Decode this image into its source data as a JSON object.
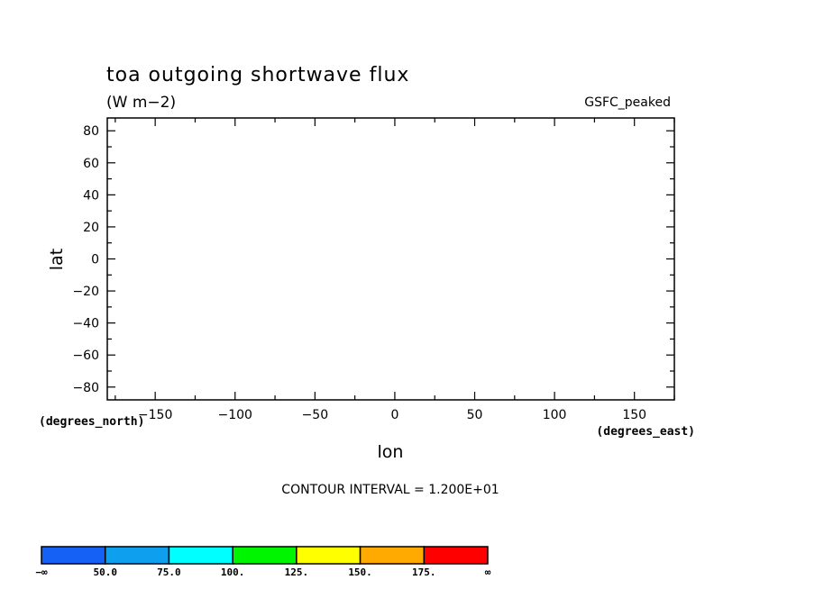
{
  "chart_data": {
    "type": "heatmap",
    "title": "toa outgoing shortwave flux",
    "units": "(W m−2)",
    "model": "GSFC_peaked",
    "xlabel": "lon",
    "ylabel": "lat",
    "x_units": "(degrees_east)",
    "y_units": "(degrees_north)",
    "xlim": [
      -180,
      175
    ],
    "ylim": [
      -88,
      88
    ],
    "x_ticks": [
      -150,
      -100,
      -50,
      0,
      50,
      100,
      150
    ],
    "y_ticks": [
      80,
      60,
      40,
      20,
      0,
      -20,
      -40,
      -60,
      -80
    ],
    "x_tick_labels": [
      "−150",
      "−100",
      "−50",
      "0",
      "50",
      "100",
      "150"
    ],
    "y_tick_labels": [
      "80",
      "60",
      "40",
      "20",
      "0",
      "−20",
      "−40",
      "−60",
      "−80"
    ],
    "contour_interval": "CONTOUR INTERVAL = 1.200E+01",
    "colorbar": {
      "colors": [
        "#1560f5",
        "#0ea0ef",
        "#00ffff",
        "#00f500",
        "#ffff00",
        "#ffaa00",
        "#ff0000"
      ],
      "labels": [
        "−∞",
        "50.0",
        "75.0",
        "100.",
        "125.",
        "150.",
        "175.",
        "∞"
      ]
    },
    "grid": false,
    "values": []
  }
}
